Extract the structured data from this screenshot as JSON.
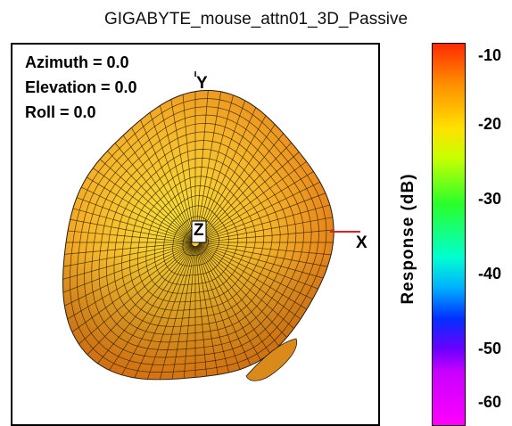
{
  "chart_data": {
    "type": "polar-3d-surface",
    "title": "GIGABYTE_mouse_attn01_3D_Passive",
    "view": {
      "azimuth": "Azimuth = 0.0",
      "elevation": "Elevation = 0.0",
      "roll": "Roll = 0.0"
    },
    "axes": {
      "x": "X",
      "y": "Y",
      "z": "Z"
    },
    "colorbar": {
      "label": "Response  (dB)",
      "ticks": [
        "-10",
        "-20",
        "-30",
        "-40",
        "-50",
        "-60"
      ],
      "range": [
        -60,
        -10
      ]
    },
    "dominant_response_db": -15,
    "colors": {
      "surface_light": "#f7d23a",
      "surface_mid": "#f3a51f",
      "surface_dark": "#e57a12",
      "axis_x": "#e02020"
    }
  }
}
